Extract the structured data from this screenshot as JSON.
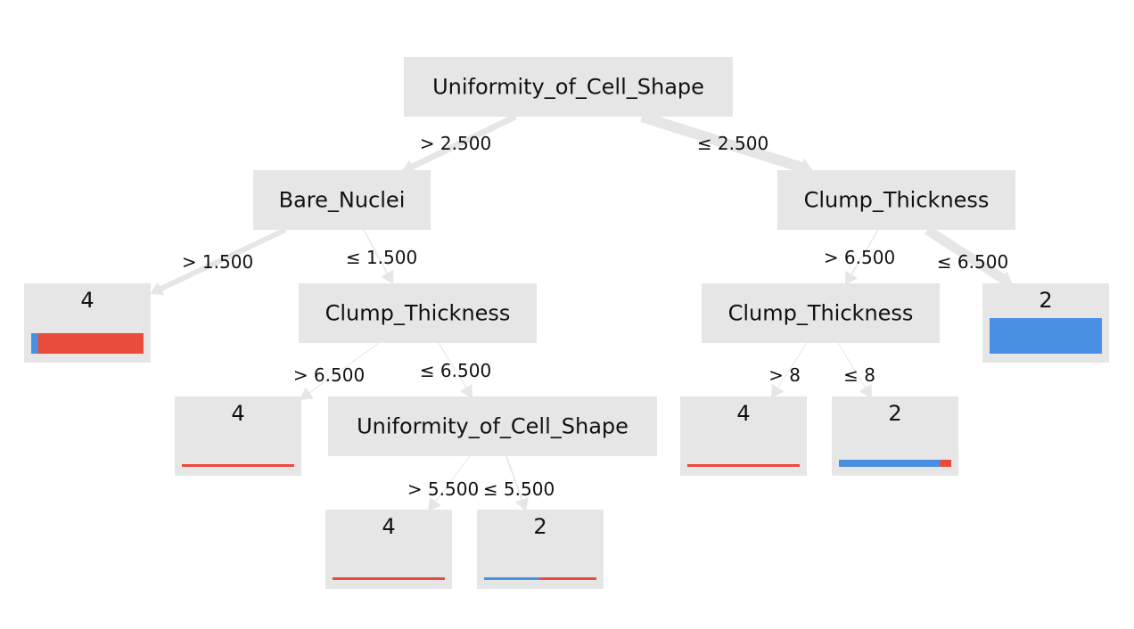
{
  "diagram": {
    "colors": {
      "class_2": "#4a90e2",
      "class_4": "#e94b3c",
      "node_fill": "#e6e6e6",
      "edge": "#e6e6e6"
    },
    "nodes": [
      {
        "id": "n0",
        "kind": "split",
        "label": "Uniformity_of_Cell_Shape"
      },
      {
        "id": "n1",
        "kind": "split",
        "label": "Bare_Nuclei"
      },
      {
        "id": "n2",
        "kind": "split",
        "label": "Clump_Thickness"
      },
      {
        "id": "n3",
        "kind": "leaf",
        "label": "4",
        "samples": 0.9,
        "dist": [
          0.06,
          0.94
        ]
      },
      {
        "id": "n4",
        "kind": "split",
        "label": "Clump_Thickness"
      },
      {
        "id": "n5",
        "kind": "split",
        "label": "Clump_Thickness"
      },
      {
        "id": "n6",
        "kind": "leaf",
        "label": "2",
        "samples": 1.6,
        "dist": [
          1.0,
          0.0
        ]
      },
      {
        "id": "n7",
        "kind": "leaf",
        "label": "4",
        "samples": 0.12,
        "dist": [
          0.0,
          1.0
        ]
      },
      {
        "id": "n8",
        "kind": "split",
        "label": "Uniformity_of_Cell_Shape"
      },
      {
        "id": "n9",
        "kind": "leaf",
        "label": "4",
        "samples": 0.12,
        "dist": [
          0.0,
          1.0
        ]
      },
      {
        "id": "n10",
        "kind": "leaf",
        "label": "2",
        "samples": 0.12,
        "dist": [
          0.5,
          0.5
        ]
      },
      {
        "id": "n11",
        "kind": "leaf",
        "label": "4",
        "samples": 0.1,
        "dist": [
          0.0,
          1.0
        ]
      },
      {
        "id": "n12",
        "kind": "leaf",
        "label": "2",
        "samples": 0.3,
        "dist": [
          0.9,
          0.1
        ]
      }
    ],
    "edges": [
      {
        "id": "e0",
        "from": "n0",
        "to": "n1",
        "label": "> 2.500",
        "weight": 7
      },
      {
        "id": "e1",
        "from": "n0",
        "to": "n2",
        "label": "≤ 2.500",
        "weight": 12
      },
      {
        "id": "e2",
        "from": "n1",
        "to": "n3",
        "label": "> 1.500",
        "weight": 6
      },
      {
        "id": "e3",
        "from": "n1",
        "to": "n4",
        "label": "≤ 1.500",
        "weight": 1.5
      },
      {
        "id": "e4",
        "from": "n2",
        "to": "n5",
        "label": "> 6.500",
        "weight": 1.5
      },
      {
        "id": "e5",
        "from": "n2",
        "to": "n6",
        "label": "≤ 6.500",
        "weight": 11
      },
      {
        "id": "e6",
        "from": "n4",
        "to": "n7",
        "label": "> 6.500",
        "weight": 1
      },
      {
        "id": "e7",
        "from": "n4",
        "to": "n8",
        "label": "≤ 6.500",
        "weight": 1.2
      },
      {
        "id": "e8",
        "from": "n5",
        "to": "n11",
        "label": "> 8",
        "weight": 1
      },
      {
        "id": "e9",
        "from": "n5",
        "to": "n12",
        "label": "≤ 8",
        "weight": 1
      },
      {
        "id": "e10",
        "from": "n8",
        "to": "n9",
        "label": "> 5.500",
        "weight": 1
      },
      {
        "id": "e11",
        "from": "n8",
        "to": "n10",
        "label": "≤ 5.500",
        "weight": 1.5
      }
    ]
  }
}
